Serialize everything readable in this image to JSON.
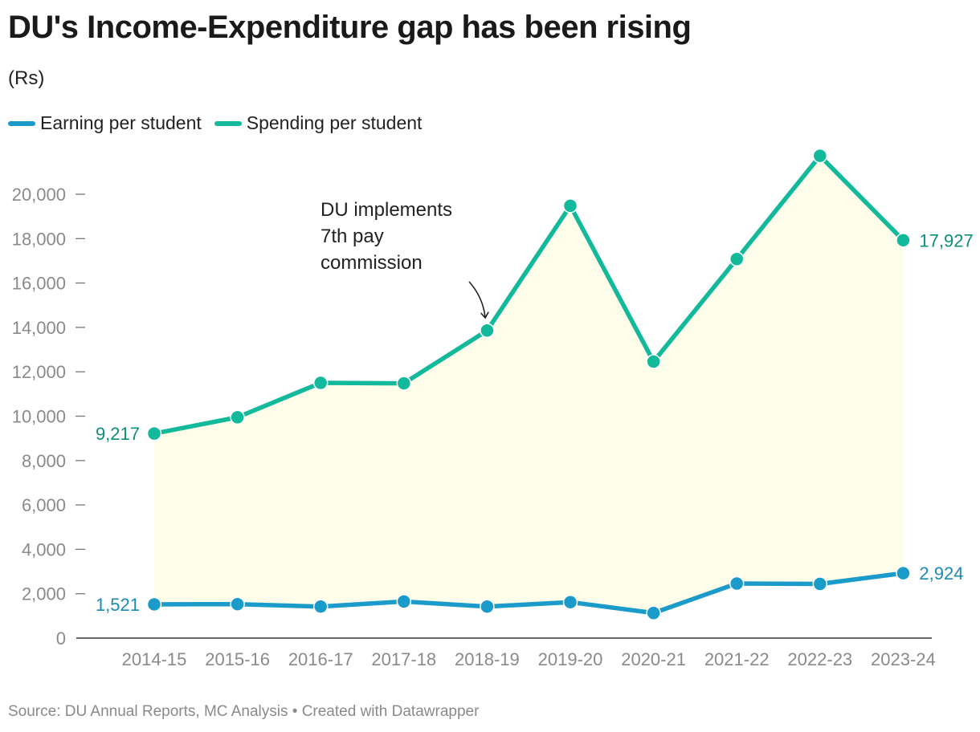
{
  "title": "DU's Income-Expenditure gap has been rising",
  "subtitle": "(Rs)",
  "footer": "Source: DU Annual Reports, MC Analysis • Created with Datawrapper",
  "colors": {
    "earning": "#1a9bc9",
    "spending": "#12b99a",
    "gap_fill": "#fefde9",
    "axis": "#333333"
  },
  "chart_data": {
    "type": "line",
    "title": "DU's Income-Expenditure gap has been rising",
    "subtitle": "(Rs)",
    "categories": [
      "2014-15",
      "2015-16",
      "2016-17",
      "2017-18",
      "2018-19",
      "2019-20",
      "2020-21",
      "2021-22",
      "2022-23",
      "2023-24"
    ],
    "series": [
      {
        "name": "Earning per student",
        "color": "#1a9bc9",
        "values": [
          1521,
          1530,
          1420,
          1650,
          1420,
          1620,
          1130,
          2460,
          2440,
          2924
        ]
      },
      {
        "name": "Spending per student",
        "color": "#12b99a",
        "values": [
          9217,
          9950,
          11500,
          11480,
          13860,
          19480,
          12460,
          17080,
          21730,
          17927
        ]
      }
    ],
    "ylim": [
      0,
      20000
    ],
    "yticks": [
      "0",
      "2,000",
      "4,000",
      "6,000",
      "8,000",
      "10,000",
      "12,000",
      "14,000",
      "16,000",
      "18,000",
      "20,000"
    ],
    "data_labels": {
      "earning_first": "1,521",
      "earning_last": "2,924",
      "spending_first": "9,217",
      "spending_last": "17,927"
    },
    "annotation": {
      "lines": [
        "DU implements",
        "7th pay",
        "commission"
      ],
      "category": "2018-19"
    },
    "shaded_area_between_series": true,
    "grid": false,
    "legend_position": "top-left"
  }
}
